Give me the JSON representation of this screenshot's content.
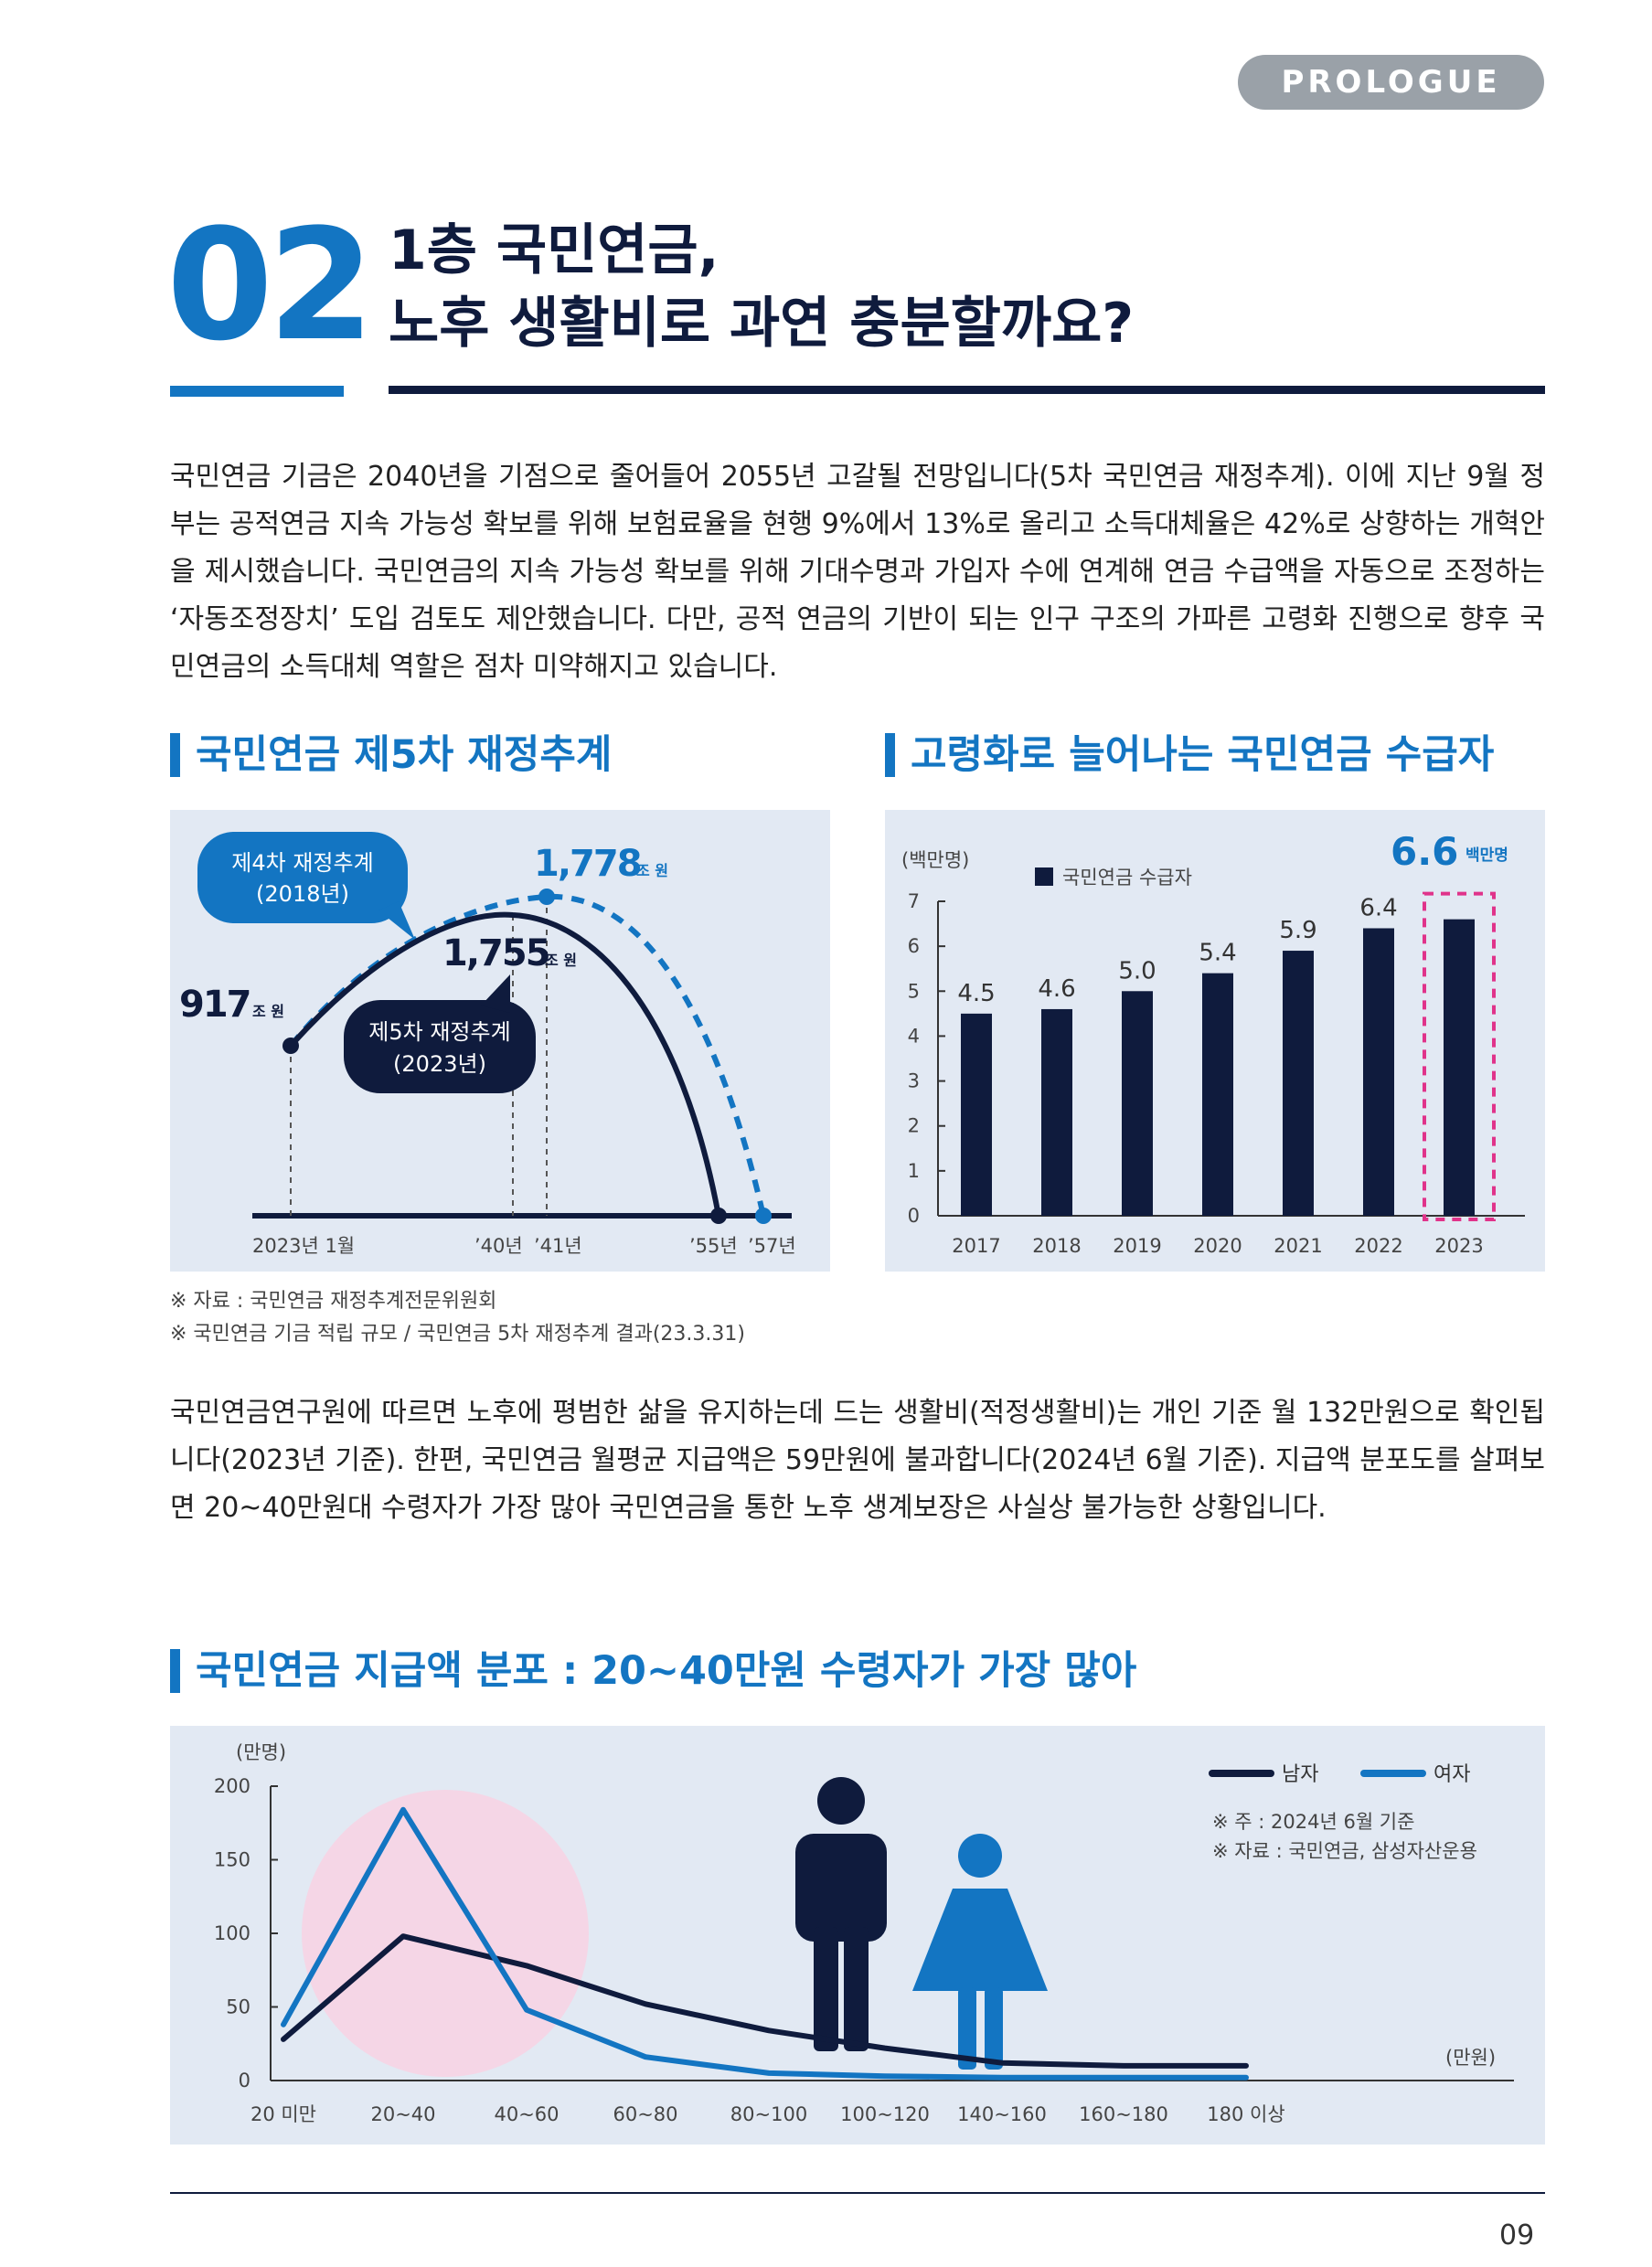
{
  "header": {
    "badge": "PROLOGUE"
  },
  "section_number": "02",
  "title": {
    "line1": "1층 국민연금,",
    "line2": "노후 생활비로 과연 충분할까요?"
  },
  "intro_paragraph": "국민연금 기금은 2040년을 기점으로 줄어들어 2055년 고갈될 전망입니다(5차 국민연금 재정추계). 이에 지난 9월 정부는 공적연금 지속 가능성 확보를 위해 보험료율을 현행 9%에서 13%로 올리고 소득대체율은 42%로 상향하는 개혁안을 제시했습니다. 국민연금의 지속 가능성 확보를 위해 기대수명과 가입자 수에 연계해 연금 수급액을 자동으로 조정하는 ‘자동조정장치’ 도입 검토도 제안했습니다. 다만, 공적 연금의 기반이 되는 인구 구조의 가파른 고령화 진행으로 향후 국민연금의 소득대체 역할은 점차 미약해지고 있습니다.",
  "chart1": {
    "heading": "국민연금 제5차 재정추계",
    "labels": {
      "start_value": "917",
      "peak4_value": "1,778",
      "peak5_value": "1,755",
      "unit": "조 원",
      "callout4_line1": "제4차 재정추계",
      "callout4_line2": "(2018년)",
      "callout5_line1": "제5차 재정추계",
      "callout5_line2": "(2023년)",
      "x_ticks": [
        "2023년 1월",
        "’40년",
        "’41년",
        "’55년",
        "’57년"
      ]
    }
  },
  "chart2": {
    "heading": "고령화로 늘어나는 국민연금 수급자",
    "y_unit": "(백만명)",
    "legend": "국민연금 수급자",
    "highlight_value": "6.6",
    "highlight_unit": "백만명",
    "y_ticks": [
      "0",
      "1",
      "2",
      "3",
      "4",
      "5",
      "6",
      "7"
    ]
  },
  "notes": [
    "※ 자료 : 국민연금 재정추계전문위원회",
    "※ 국민연금 기금 적립 규모 / 국민연금 5차 재정추계 결과(23.3.31)"
  ],
  "second_paragraph": "국민연금연구원에 따르면 노후에 평범한 삶을 유지하는데 드는 생활비(적정생활비)는 개인 기준 월 132만원으로 확인됩니다(2023년 기준). 한편, 국민연금 월평균 지급액은 59만원에 불과합니다(2024년 6월 기준). 지급액 분포도를 살펴보면 20~40만원대 수령자가 가장 많아 국민연금을 통한 노후 생계보장은 사실상 불가능한 상황입니다.",
  "chart3": {
    "heading": "국민연금 지급액 분포 : 20~40만원 수령자가 가장 많아",
    "y_unit": "(만명)",
    "x_unit": "(만원)",
    "y_ticks": [
      "0",
      "50",
      "100",
      "150",
      "200"
    ],
    "legend_male": "남자",
    "legend_female": "여자",
    "note1": "※ 주 : 2024년 6월 기준",
    "note2": "※ 자료 : 국민연금, 삼성자산운용"
  },
  "page_number": "09",
  "colors": {
    "accent": "#1375c2",
    "navy": "#0f1b3d",
    "panel": "#e2e9f3",
    "highlight": "#e0338a"
  },
  "chart_data": [
    {
      "type": "line",
      "title": "국민연금 제5차 재정추계",
      "x": [
        2023,
        2040,
        2041,
        2055,
        2057
      ],
      "series": [
        {
          "name": "제4차 재정추계 (2018년)",
          "points": [
            [
              2023,
              917
            ],
            [
              2041,
              1778
            ],
            [
              2057,
              0
            ]
          ]
        },
        {
          "name": "제5차 재정추계 (2023년)",
          "points": [
            [
              2023,
              917
            ],
            [
              2040,
              1755
            ],
            [
              2055,
              0
            ]
          ]
        }
      ],
      "ylabel": "조 원",
      "legend": "callouts"
    },
    {
      "type": "bar",
      "title": "고령화로 늘어나는 국민연금 수급자",
      "categories": [
        "2017",
        "2018",
        "2019",
        "2020",
        "2021",
        "2022",
        "2023"
      ],
      "values": [
        4.5,
        4.6,
        5.0,
        5.4,
        5.9,
        6.4,
        6.6
      ],
      "value_labels": [
        "4.5",
        "4.6",
        "5.0",
        "5.4",
        "5.9",
        "6.4",
        ""
      ],
      "ylabel": "(백만명)",
      "ylim": [
        0,
        7
      ],
      "legend": "top-center",
      "highlight_category": "2023"
    },
    {
      "type": "line",
      "title": "국민연금 지급액 분포 : 20~40만원 수령자가 가장 많아",
      "categories": [
        "20 미만",
        "20~40",
        "40~60",
        "60~80",
        "80~100",
        "100~120",
        "140~160",
        "160~180",
        "180 이상"
      ],
      "series": [
        {
          "name": "남자",
          "values": [
            28,
            98,
            78,
            52,
            34,
            22,
            12,
            10,
            10
          ]
        },
        {
          "name": "여자",
          "values": [
            38,
            184,
            48,
            16,
            5,
            3,
            2,
            2,
            2
          ]
        }
      ],
      "ylabel": "(만명)",
      "xlabel": "(만원)",
      "ylim": [
        0,
        200
      ],
      "legend": "top-right"
    }
  ]
}
